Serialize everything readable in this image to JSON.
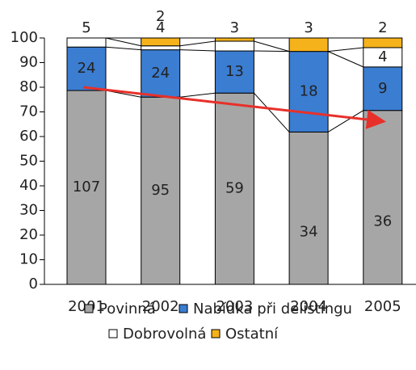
{
  "chart_data": {
    "type": "stacked_percent_bar",
    "categories": [
      "2001",
      "2002",
      "2003",
      "2004",
      "2005"
    ],
    "series": [
      {
        "name": "Povinná",
        "color": "#a6a6a6",
        "values": [
          107,
          95,
          59,
          34,
          36
        ]
      },
      {
        "name": "Nabídka při delistingu",
        "color": "#3b7dd1",
        "values": [
          24,
          24,
          13,
          18,
          9
        ]
      },
      {
        "name": "Dobrovolná",
        "color": "#ffffff",
        "values": [
          5,
          2,
          3,
          0,
          4
        ],
        "value_labels": [
          "5",
          "2",
          "3",
          null,
          "4"
        ]
      },
      {
        "name": "Ostatní",
        "color": "#f5b21a",
        "values": [
          0,
          4,
          1,
          3,
          2
        ],
        "value_labels": [
          null,
          "4",
          null,
          "3",
          "2"
        ]
      }
    ],
    "ylim": [
      0,
      100
    ],
    "yticks": [
      0,
      10,
      20,
      30,
      40,
      50,
      60,
      70,
      80,
      90,
      100
    ]
  }
}
